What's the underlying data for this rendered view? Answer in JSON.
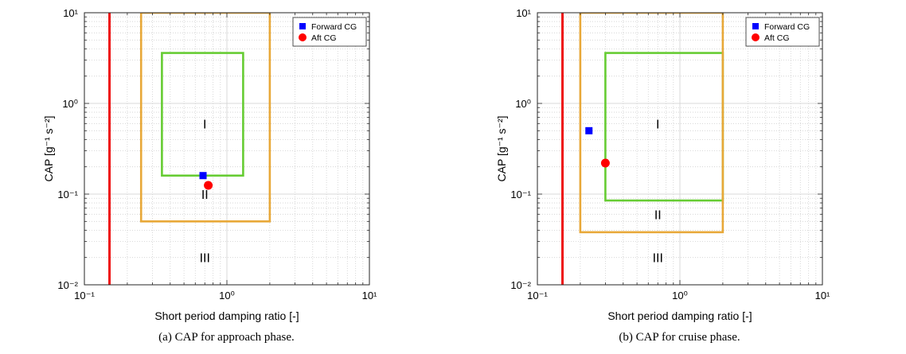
{
  "chart_data": [
    {
      "type": "scatter",
      "caption": "(a) CAP for approach phase.",
      "xlabel": "Short period damping ratio [-]",
      "ylabel": "CAP [g⁻¹ s⁻²]",
      "xscale": "log",
      "yscale": "log",
      "xlim": [
        0.1,
        10
      ],
      "ylim": [
        0.01,
        10
      ],
      "grid": true,
      "x_ticks": [
        "10⁻¹",
        "10⁰",
        "10¹"
      ],
      "y_ticks": [
        "10⁻²",
        "10⁻¹",
        "10⁰",
        "10¹"
      ],
      "legend_position": "top-right",
      "series": [
        {
          "name": "Forward CG",
          "marker": "square",
          "color": "#0000ff",
          "x": [
            0.68
          ],
          "y": [
            0.16
          ]
        },
        {
          "name": "Aft CG",
          "marker": "circle",
          "color": "#ff0000",
          "x": [
            0.74
          ],
          "y": [
            0.125
          ]
        }
      ],
      "boundaries": [
        {
          "level": "Level 1",
          "color": "#66cc33",
          "x": [
            0.35,
            1.3
          ],
          "y": [
            0.16,
            3.6
          ]
        },
        {
          "level": "Level 2",
          "color": "#e8a838",
          "x": [
            0.25,
            2.0
          ],
          "y": [
            0.05,
            10
          ]
        },
        {
          "level": "Level 3 limit",
          "color": "#ee1111",
          "x": [
            0.15
          ]
        }
      ],
      "regions": [
        {
          "label": "I",
          "x": 0.7,
          "y": 0.6
        },
        {
          "label": "II",
          "x": 0.7,
          "y": 0.1
        },
        {
          "label": "III",
          "x": 0.7,
          "y": 0.02
        }
      ]
    },
    {
      "type": "scatter",
      "caption": "(b) CAP for cruise phase.",
      "xlabel": "Short period damping ratio [-]",
      "ylabel": "CAP [g⁻¹ s⁻²]",
      "xscale": "log",
      "yscale": "log",
      "xlim": [
        0.1,
        10
      ],
      "ylim": [
        0.01,
        10
      ],
      "grid": true,
      "x_ticks": [
        "10⁻¹",
        "10⁰",
        "10¹"
      ],
      "y_ticks": [
        "10⁻²",
        "10⁻¹",
        "10⁰",
        "10¹"
      ],
      "legend_position": "top-right",
      "series": [
        {
          "name": "Forward CG",
          "marker": "square",
          "color": "#0000ff",
          "x": [
            0.23
          ],
          "y": [
            0.5
          ]
        },
        {
          "name": "Aft CG",
          "marker": "circle",
          "color": "#ff0000",
          "x": [
            0.3
          ],
          "y": [
            0.22
          ]
        }
      ],
      "boundaries": [
        {
          "level": "Level 1",
          "color": "#66cc33",
          "x": [
            0.3,
            2.0
          ],
          "y": [
            0.085,
            3.6
          ]
        },
        {
          "level": "Level 2",
          "color": "#e8a838",
          "x": [
            0.2,
            2.0
          ],
          "y": [
            0.038,
            10
          ]
        },
        {
          "level": "Level 3 limit",
          "color": "#ee1111",
          "x": [
            0.15
          ]
        }
      ],
      "regions": [
        {
          "label": "I",
          "x": 0.7,
          "y": 0.6
        },
        {
          "label": "II",
          "x": 0.7,
          "y": 0.06
        },
        {
          "label": "III",
          "x": 0.7,
          "y": 0.02
        }
      ]
    }
  ]
}
